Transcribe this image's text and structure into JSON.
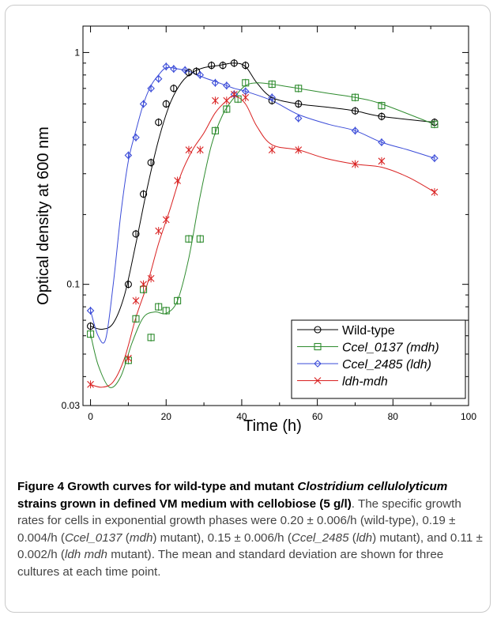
{
  "chart_data": {
    "type": "scatter",
    "yscale": "log",
    "xlim": [
      -2,
      100
    ],
    "ylim": [
      0.03,
      1.3
    ],
    "x_ticks": [
      0,
      20,
      40,
      60,
      80,
      100
    ],
    "x_tick_labels": [
      "0",
      "20",
      "40",
      "60",
      "80",
      "100"
    ],
    "y_tick_labels": [
      {
        "value": 1,
        "label": "1"
      },
      {
        "value": 0.1,
        "label": "0.1"
      },
      {
        "value": 0.03,
        "label": "0.03"
      }
    ],
    "xlabel": "Time (h)",
    "ylabel": "Optical density at 600 nm",
    "legend_position": "lower-right",
    "series": [
      {
        "name": "Wild-type",
        "marker": "circle",
        "color": "#000000",
        "points": [
          {
            "x": 0,
            "y": 0.066
          },
          {
            "x": 10,
            "y": 0.1
          },
          {
            "x": 12,
            "y": 0.165
          },
          {
            "x": 14,
            "y": 0.245
          },
          {
            "x": 16,
            "y": 0.335
          },
          {
            "x": 18,
            "y": 0.5
          },
          {
            "x": 20,
            "y": 0.6
          },
          {
            "x": 22,
            "y": 0.7
          },
          {
            "x": 26,
            "y": 0.82
          },
          {
            "x": 28,
            "y": 0.83
          },
          {
            "x": 32,
            "y": 0.88
          },
          {
            "x": 35,
            "y": 0.88
          },
          {
            "x": 38,
            "y": 0.9
          },
          {
            "x": 41,
            "y": 0.88
          },
          {
            "x": 48,
            "y": 0.62
          },
          {
            "x": 55,
            "y": 0.6
          },
          {
            "x": 70,
            "y": 0.56
          },
          {
            "x": 77,
            "y": 0.53
          },
          {
            "x": 91,
            "y": 0.5
          }
        ],
        "curve": [
          [
            0,
            0.066
          ],
          [
            3,
            0.064
          ],
          [
            6,
            0.068
          ],
          [
            9,
            0.09
          ],
          [
            12,
            0.15
          ],
          [
            15,
            0.26
          ],
          [
            18,
            0.42
          ],
          [
            21,
            0.6
          ],
          [
            24,
            0.74
          ],
          [
            27,
            0.82
          ],
          [
            30,
            0.86
          ],
          [
            34,
            0.88
          ],
          [
            38,
            0.9
          ],
          [
            41,
            0.87
          ],
          [
            44,
            0.74
          ],
          [
            48,
            0.64
          ],
          [
            55,
            0.6
          ],
          [
            63,
            0.58
          ],
          [
            70,
            0.56
          ],
          [
            77,
            0.53
          ],
          [
            91,
            0.5
          ]
        ]
      },
      {
        "name": "Ccel_0137 (mdh)",
        "marker": "square",
        "color": "#2e8b2e",
        "points": [
          {
            "x": 0,
            "y": 0.061
          },
          {
            "x": 10,
            "y": 0.047
          },
          {
            "x": 12,
            "y": 0.071
          },
          {
            "x": 14,
            "y": 0.095
          },
          {
            "x": 16,
            "y": 0.059
          },
          {
            "x": 18,
            "y": 0.08
          },
          {
            "x": 20,
            "y": 0.077
          },
          {
            "x": 23,
            "y": 0.085
          },
          {
            "x": 26,
            "y": 0.157
          },
          {
            "x": 29,
            "y": 0.157
          },
          {
            "x": 33,
            "y": 0.46
          },
          {
            "x": 36,
            "y": 0.57
          },
          {
            "x": 39,
            "y": 0.63
          },
          {
            "x": 41,
            "y": 0.74
          },
          {
            "x": 48,
            "y": 0.73
          },
          {
            "x": 55,
            "y": 0.7
          },
          {
            "x": 70,
            "y": 0.64
          },
          {
            "x": 77,
            "y": 0.59
          },
          {
            "x": 91,
            "y": 0.49
          }
        ],
        "curve": [
          [
            0,
            0.061
          ],
          [
            2,
            0.045
          ],
          [
            5,
            0.036
          ],
          [
            8,
            0.04
          ],
          [
            11,
            0.056
          ],
          [
            14,
            0.072
          ],
          [
            17,
            0.076
          ],
          [
            20,
            0.075
          ],
          [
            23,
            0.085
          ],
          [
            26,
            0.13
          ],
          [
            29,
            0.24
          ],
          [
            32,
            0.4
          ],
          [
            35,
            0.54
          ],
          [
            38,
            0.64
          ],
          [
            41,
            0.72
          ],
          [
            44,
            0.74
          ],
          [
            48,
            0.73
          ],
          [
            55,
            0.7
          ],
          [
            62,
            0.67
          ],
          [
            70,
            0.64
          ],
          [
            77,
            0.6
          ],
          [
            91,
            0.49
          ]
        ]
      },
      {
        "name": "Ccel_2485 (ldh)",
        "marker": "diamond",
        "color": "#3a4bd8",
        "points": [
          {
            "x": 0,
            "y": 0.077
          },
          {
            "x": 10,
            "y": 0.36
          },
          {
            "x": 12,
            "y": 0.43
          },
          {
            "x": 14,
            "y": 0.6
          },
          {
            "x": 16,
            "y": 0.7
          },
          {
            "x": 18,
            "y": 0.77
          },
          {
            "x": 20,
            "y": 0.87
          },
          {
            "x": 22,
            "y": 0.85
          },
          {
            "x": 25,
            "y": 0.84
          },
          {
            "x": 29,
            "y": 0.8
          },
          {
            "x": 33,
            "y": 0.74
          },
          {
            "x": 36,
            "y": 0.72
          },
          {
            "x": 38,
            "y": 0.66
          },
          {
            "x": 41,
            "y": 0.68
          },
          {
            "x": 48,
            "y": 0.64
          },
          {
            "x": 55,
            "y": 0.52
          },
          {
            "x": 70,
            "y": 0.46
          },
          {
            "x": 77,
            "y": 0.41
          },
          {
            "x": 91,
            "y": 0.35
          }
        ],
        "curve": [
          [
            0,
            0.077
          ],
          [
            2,
            0.06
          ],
          [
            4,
            0.058
          ],
          [
            6,
            0.1
          ],
          [
            8,
            0.2
          ],
          [
            10,
            0.34
          ],
          [
            12,
            0.46
          ],
          [
            14,
            0.6
          ],
          [
            16,
            0.72
          ],
          [
            18,
            0.8
          ],
          [
            20,
            0.86
          ],
          [
            23,
            0.85
          ],
          [
            26,
            0.83
          ],
          [
            30,
            0.78
          ],
          [
            34,
            0.74
          ],
          [
            38,
            0.7
          ],
          [
            41,
            0.68
          ],
          [
            48,
            0.62
          ],
          [
            55,
            0.54
          ],
          [
            63,
            0.49
          ],
          [
            70,
            0.46
          ],
          [
            77,
            0.41
          ],
          [
            84,
            0.38
          ],
          [
            91,
            0.35
          ]
        ]
      },
      {
        "name": "ldh-mdh",
        "marker": "x",
        "color": "#d92020",
        "points": [
          {
            "x": 0,
            "y": 0.037
          },
          {
            "x": 10,
            "y": 0.048
          },
          {
            "x": 12,
            "y": 0.085
          },
          {
            "x": 14,
            "y": 0.1
          },
          {
            "x": 16,
            "y": 0.106
          },
          {
            "x": 18,
            "y": 0.17
          },
          {
            "x": 20,
            "y": 0.19
          },
          {
            "x": 23,
            "y": 0.28
          },
          {
            "x": 26,
            "y": 0.38
          },
          {
            "x": 29,
            "y": 0.38
          },
          {
            "x": 33,
            "y": 0.62
          },
          {
            "x": 36,
            "y": 0.62
          },
          {
            "x": 38,
            "y": 0.66
          },
          {
            "x": 41,
            "y": 0.64
          },
          {
            "x": 48,
            "y": 0.38
          },
          {
            "x": 55,
            "y": 0.38
          },
          {
            "x": 70,
            "y": 0.33
          },
          {
            "x": 77,
            "y": 0.34
          },
          {
            "x": 91,
            "y": 0.25
          }
        ],
        "curve": [
          [
            0,
            0.037
          ],
          [
            3,
            0.036
          ],
          [
            6,
            0.038
          ],
          [
            9,
            0.048
          ],
          [
            12,
            0.072
          ],
          [
            15,
            0.1
          ],
          [
            18,
            0.15
          ],
          [
            21,
            0.21
          ],
          [
            24,
            0.3
          ],
          [
            27,
            0.38
          ],
          [
            30,
            0.45
          ],
          [
            33,
            0.55
          ],
          [
            36,
            0.62
          ],
          [
            38,
            0.65
          ],
          [
            41,
            0.6
          ],
          [
            44,
            0.48
          ],
          [
            48,
            0.4
          ],
          [
            55,
            0.38
          ],
          [
            62,
            0.35
          ],
          [
            70,
            0.33
          ],
          [
            77,
            0.32
          ],
          [
            84,
            0.29
          ],
          [
            91,
            0.25
          ]
        ]
      }
    ]
  },
  "legend": {
    "entries": [
      {
        "label": "Wild-type",
        "italic": false
      },
      {
        "label": "Ccel_0137 (mdh)",
        "italic": true
      },
      {
        "label": "Ccel_2485 (ldh)",
        "italic": true
      },
      {
        "label": "ldh-mdh",
        "italic": true
      }
    ]
  },
  "caption": {
    "title_part1": "Figure 4 Growth curves for wild-type and mutant ",
    "title_species": "Clostridium cellulolyticum",
    "title_part2": " strains grown in defined VM medium with cellobiose (5 g/l)",
    "t1": ". The specific growth rates for cells in exponential growth phases were 0.20 ± 0.006/h (wild-type), 0.19 ± 0.004/h (",
    "g1": "Ccel_0137",
    "t2": " (",
    "g2": "mdh",
    "t3": ") mutant), 0.15 ± 0.006/h (",
    "g3": "Ccel_2485",
    "t4": " (",
    "g4": "ldh",
    "t5": ") mutant), and 0.11 ± 0.002/h (",
    "g5": "ldh mdh",
    "t6": " mutant). The mean and standard deviation are shown for three cultures at each time point."
  }
}
